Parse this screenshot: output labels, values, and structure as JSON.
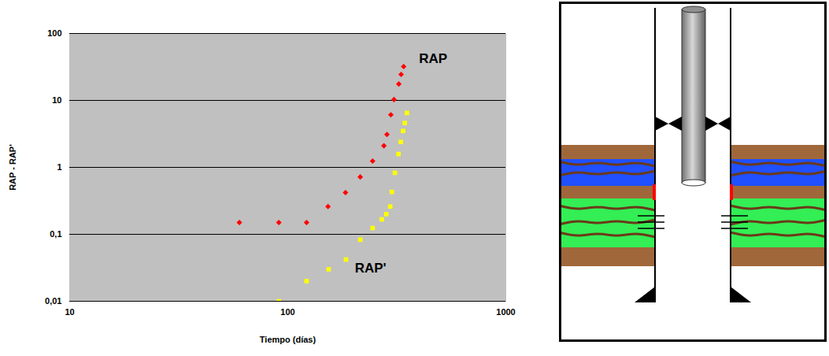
{
  "chart_data": {
    "type": "scatter",
    "x_label": "Tiempo (días)",
    "y_label": "RAP - RAP'",
    "log": true,
    "grid": true,
    "xlim": [
      10,
      1000
    ],
    "xticks": [
      10,
      100,
      1000
    ],
    "ylim": [
      0.01,
      100
    ],
    "yticks": [
      {
        "value": 0.01,
        "label": "0,01"
      },
      {
        "value": 0.1,
        "label": "0,1"
      },
      1,
      10,
      100
    ],
    "series": [
      {
        "name": "RAP",
        "color": "#ff0000",
        "marker": "diamond",
        "x": [
          60,
          91,
          122,
          153,
          184,
          215,
          245,
          276,
          285,
          297,
          307,
          323,
          331,
          340
        ],
        "values": [
          0.15,
          0.15,
          0.15,
          0.26,
          0.42,
          0.72,
          1.24,
          2.1,
          3.1,
          6.1,
          10.3,
          17.6,
          24.4,
          32
        ]
      },
      {
        "name": "RAP'",
        "color": "#ffff00",
        "marker": "square",
        "x": [
          91,
          122,
          154,
          185,
          215,
          245,
          270,
          283,
          295,
          300,
          310,
          322,
          330,
          338,
          344,
          352
        ],
        "values": [
          0.01,
          0.02,
          0.03,
          0.042,
          0.083,
          0.124,
          0.167,
          0.2,
          0.26,
          0.43,
          0.83,
          1.58,
          2.4,
          3.5,
          4.6,
          6.5
        ]
      }
    ],
    "annotations": [
      {
        "text": "RAP",
        "x": 400,
        "y": 42
      },
      {
        "text": "RAP'",
        "x": 203,
        "y": 0.031
      }
    ]
  }
}
